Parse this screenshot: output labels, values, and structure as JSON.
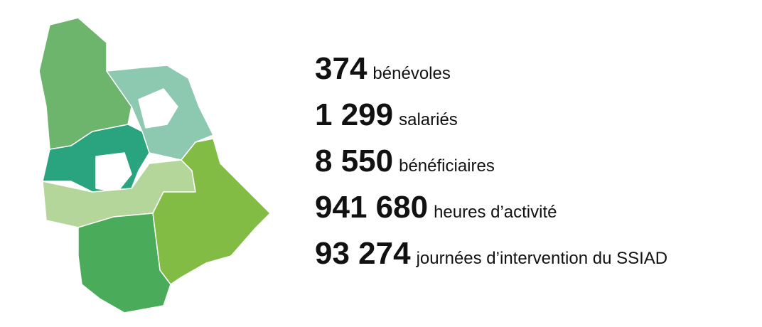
{
  "stats": [
    {
      "value": "374",
      "label": "bénévoles"
    },
    {
      "value": "1 299",
      "label": "salariés"
    },
    {
      "value": "8 550",
      "label": "bénéficiaires"
    },
    {
      "value": "941 680",
      "label": "heures d’activité"
    },
    {
      "value": "93 274",
      "label": "journées d’intervention du SSIAD"
    }
  ]
}
